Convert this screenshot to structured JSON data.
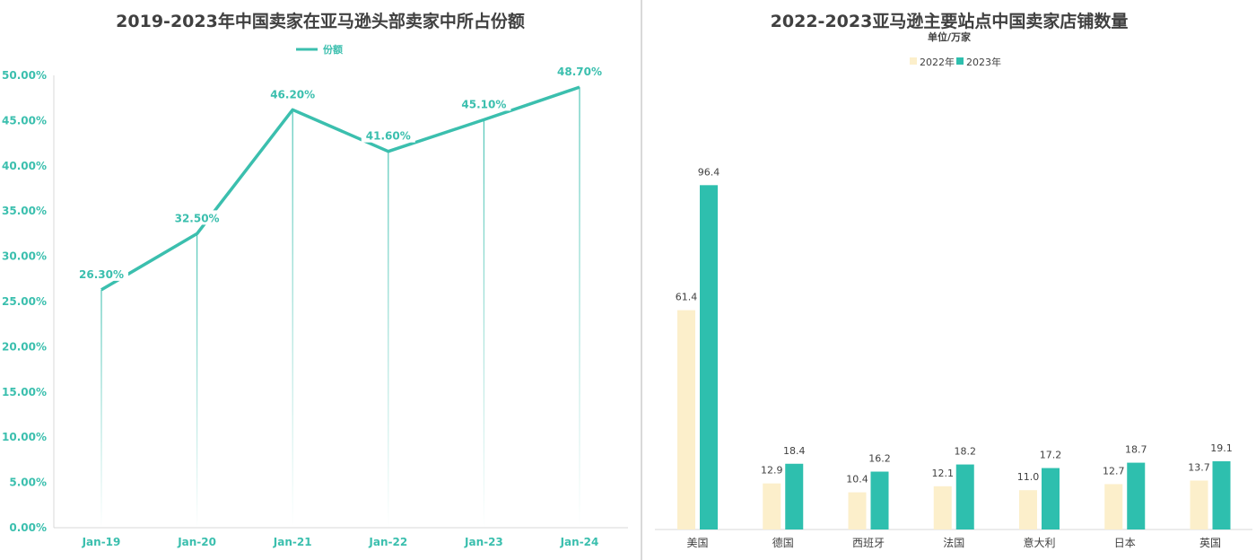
{
  "left": {
    "title": "2019-2023年中国卖家在亚马逊头部卖家中所占份额",
    "legend_label": "份额",
    "color": "#3BBFAE"
  },
  "right": {
    "title": "2022-2023亚马逊主要站点中国卖家店铺数量",
    "subtitle": "单位/万家",
    "legend": [
      "2022年",
      "2023年"
    ],
    "colors": [
      "#FCEFCB",
      "#2EBFAE"
    ]
  },
  "chart_data": [
    {
      "type": "line",
      "title": "2019-2023年中国卖家在亚马逊头部卖家中所占份额",
      "categories": [
        "Jan-19",
        "Jan-20",
        "Jan-21",
        "Jan-22",
        "Jan-23",
        "Jan-24"
      ],
      "series": [
        {
          "name": "份额",
          "values": [
            26.3,
            32.5,
            46.2,
            41.6,
            45.1,
            48.7
          ]
        }
      ],
      "data_labels": [
        "26.30%",
        "32.50%",
        "46.20%",
        "41.60%",
        "45.10%",
        "48.70%"
      ],
      "ylim": [
        0,
        50
      ],
      "yticks": [
        "0.00%",
        "5.00%",
        "10.00%",
        "15.00%",
        "20.00%",
        "25.00%",
        "30.00%",
        "35.00%",
        "40.00%",
        "45.00%",
        "50.00%"
      ],
      "legend_position": "top"
    },
    {
      "type": "bar",
      "title": "2022-2023亚马逊主要站点中国卖家店铺数量",
      "subtitle": "单位/万家",
      "categories": [
        "美国",
        "德国",
        "西班牙",
        "法国",
        "意大利",
        "日本",
        "英国"
      ],
      "series": [
        {
          "name": "2022年",
          "values": [
            61.4,
            12.9,
            10.4,
            12.1,
            11.0,
            12.7,
            13.7
          ]
        },
        {
          "name": "2023年",
          "values": [
            96.4,
            18.4,
            16.2,
            18.2,
            17.2,
            18.7,
            19.1
          ]
        }
      ],
      "ylim": [
        0,
        100
      ],
      "legend_position": "top"
    }
  ]
}
